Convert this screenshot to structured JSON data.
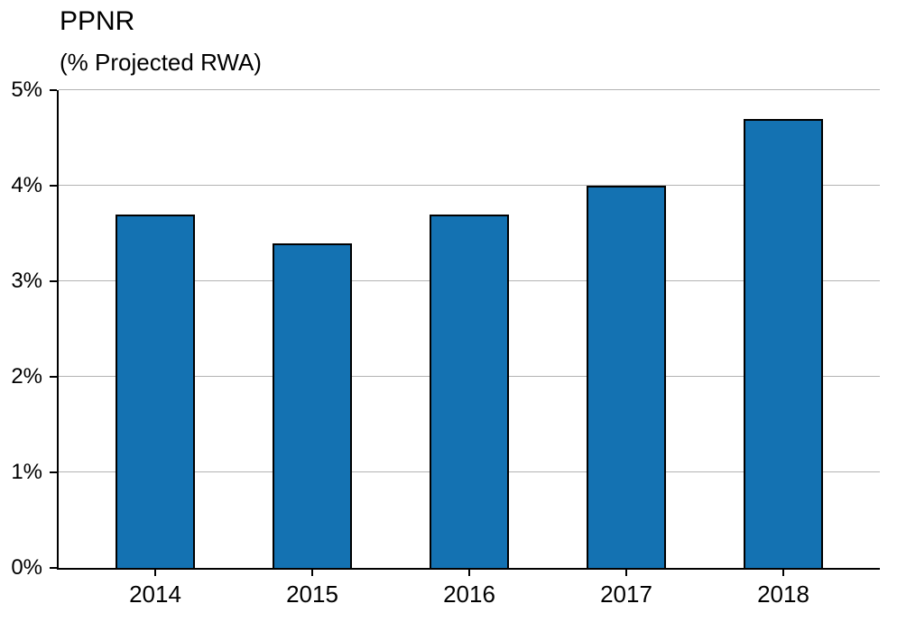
{
  "chart_data": {
    "type": "bar",
    "title": "PPNR",
    "subtitle": "(% Projected RWA)",
    "categories": [
      "2014",
      "2015",
      "2016",
      "2017",
      "2018"
    ],
    "values": [
      3.7,
      3.4,
      3.7,
      4.0,
      4.7
    ],
    "xlabel": "",
    "ylabel": "",
    "ylim": [
      0,
      5
    ],
    "yticks": [
      "0%",
      "1%",
      "2%",
      "3%",
      "4%",
      "5%"
    ],
    "ytick_values": [
      0,
      1,
      2,
      3,
      4,
      5
    ],
    "grid": true,
    "legend": "none",
    "bar_color": "#1472b2",
    "bar_border_color": "#000000",
    "gridline_color": "#b3b3b3"
  }
}
